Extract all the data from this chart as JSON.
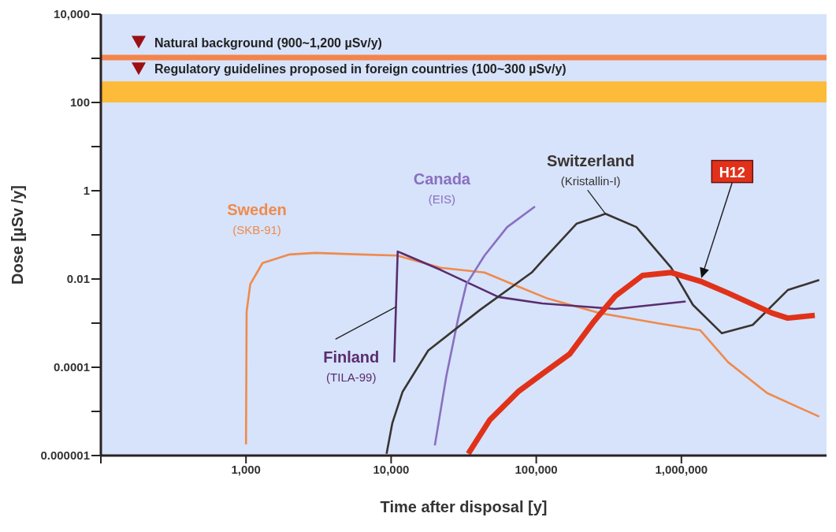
{
  "chart_data": {
    "type": "line",
    "xlabel": "Time after disposal [y]",
    "ylabel": "Dose [µSv /y]",
    "log": "xy",
    "xlim": [
      100,
      10000000
    ],
    "ylim": [
      1e-06,
      10000
    ],
    "xticks": [
      {
        "value": 100,
        "label": null
      },
      {
        "value": 1000,
        "label": "1,000"
      },
      {
        "value": 10000,
        "label": "10,000"
      },
      {
        "value": 100000,
        "label": "100,000"
      },
      {
        "value": 1000000,
        "label": "1,000,000"
      }
    ],
    "yticks": [
      {
        "value": 10000,
        "label": "10,000"
      },
      {
        "value": 1000,
        "label": null
      },
      100,
      {
        "value": 10,
        "label": null
      },
      1,
      {
        "value": 0.1,
        "label": null
      },
      0.01,
      {
        "value": 0.001,
        "label": null
      },
      0.0001,
      {
        "value": 1e-05,
        "label": null
      },
      {
        "value": 1e-06,
        "label": "0.000001"
      }
    ],
    "bands": [
      {
        "axis": "y",
        "from": 900,
        "to": 1200,
        "label": "Natural background (900~1,200 µSv/y)",
        "color": "#f5844a"
      },
      {
        "axis": "y",
        "from": 100,
        "to": 300,
        "label": "Regulatory guidelines proposed in foreign countries (100~300 µSv/y)",
        "color": "#fdbb3a"
      }
    ],
    "series": [
      {
        "name": "Sweden (SKB-91)",
        "color": "#f08a4b",
        "x": [
          1000,
          1010,
          1070,
          1300,
          2000,
          3000,
          6200,
          11000,
          22000,
          44000,
          69000,
          120000,
          270000,
          680000,
          1350000,
          2100000,
          3900000,
          8900000
        ],
        "values": [
          1.8e-06,
          0.0018,
          0.0076,
          0.023,
          0.036,
          0.039,
          0.036,
          0.034,
          0.018,
          0.014,
          0.0076,
          0.0036,
          0.0017,
          0.001,
          0.00069,
          0.00013,
          2.6e-05,
          7.6e-06
        ]
      },
      {
        "name": "Finland (TILA-99)",
        "color": "#5a2d6e",
        "x": [
          10500,
          11100,
          22000,
          55000,
          110000,
          350000,
          1070000
        ],
        "values": [
          0.00013,
          0.042,
          0.016,
          0.0039,
          0.0028,
          0.0021,
          0.0031
        ]
      },
      {
        "name": "Canada (EIS)",
        "color": "#8a6fbf",
        "x": [
          20000,
          24000,
          29000,
          33000,
          44000,
          63000,
          98000
        ],
        "values": [
          1.7e-06,
          6.3e-05,
          0.0013,
          0.0076,
          0.034,
          0.15,
          0.44
        ]
      },
      {
        "name": "Switzerland (Kristallin-I)",
        "color": "#3a3430",
        "x": [
          9300,
          10200,
          12000,
          18000,
          41000,
          93000,
          110000,
          190000,
          300000,
          490000,
          850000,
          1200000,
          1900000,
          3100000,
          5400000,
          8900000
        ],
        "values": [
          1.1e-06,
          5.5e-06,
          2.8e-05,
          0.00024,
          0.002,
          0.014,
          0.026,
          0.18,
          0.3,
          0.15,
          0.018,
          0.0026,
          0.00059,
          0.00091,
          0.0056,
          0.0095
        ]
      },
      {
        "name": "H12",
        "color": "#e0321a",
        "x": [
          34000,
          48000,
          76000,
          110000,
          170000,
          250000,
          350000,
          540000,
          850000,
          1350000,
          2100000,
          4200000,
          5400000,
          8300000
        ],
        "values": [
          1.1e-06,
          6.5e-06,
          2.9e-05,
          7.1e-05,
          0.0002,
          0.0011,
          0.0041,
          0.012,
          0.014,
          0.0089,
          0.0048,
          0.0017,
          0.0013,
          0.0015
        ]
      }
    ]
  }
}
